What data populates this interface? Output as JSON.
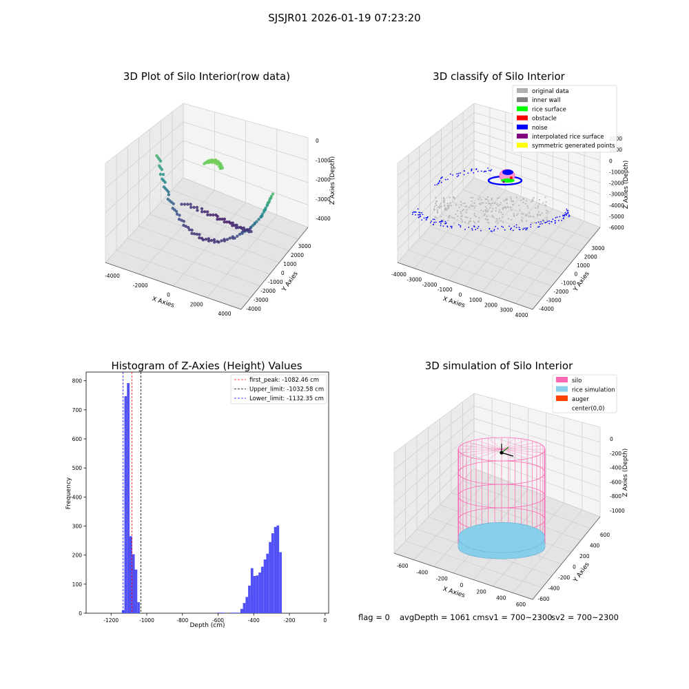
{
  "figure": {
    "suptitle": "SJSJR01 2026-01-19 07:23:20",
    "footer": {
      "flag": "flag = 0",
      "avg": "avgDepth = 1061 cmsv1 = 700~2300",
      "sv2": "sv2 = 700~2300"
    },
    "colors": {
      "histogram_bar": "#5050f5",
      "first_peak": "#ff0000",
      "upper_limit": "#000000",
      "lower_limit": "#0000ff",
      "silo": "#ff69b4",
      "rice_simulation": "#87ceeb",
      "auger": "#ff4500",
      "grid": "#cccccc",
      "pane": "#f2f2f2"
    }
  },
  "chart_data": [
    {
      "id": "raw",
      "type": "scatter",
      "title": "3D Plot of Silo Interior(row data)",
      "xlabel": "X Axies",
      "ylabel": "Y Axies",
      "zlabel": "Z Axies (Depth)",
      "x_ticks": [
        "-4000",
        "-2000",
        "0",
        "2000",
        "4000"
      ],
      "y_ticks": [
        "-4000",
        "-3000",
        "-2000",
        "-1000",
        "0",
        "1000",
        "2000",
        "3000"
      ],
      "z_ticks": [
        "0",
        "-1000",
        "-2000",
        "-3000",
        "-4000"
      ],
      "xlim": [
        -4500,
        4500
      ],
      "ylim": [
        -4500,
        3500
      ],
      "zlim": [
        -4500,
        500
      ],
      "colormap": "viridis",
      "series": [
        {
          "x": [
            -3900,
            -3400,
            -2800,
            -2000,
            -1000,
            0,
            1000,
            2000,
            2800,
            3400,
            3700,
            4000
          ],
          "y": [
            0,
            -300,
            -600,
            -900,
            -1100,
            -1150,
            -1000,
            -800,
            -500,
            -200,
            0,
            200
          ],
          "z": [
            -1200,
            -2000,
            -2700,
            -3300,
            -3700,
            -3900,
            -3800,
            -3400,
            -2900,
            -2300,
            -1700,
            -1100
          ]
        },
        {
          "x": [
            -2500,
            -1500,
            -500,
            500,
            1500,
            2500
          ],
          "y": [
            500,
            900,
            1100,
            1000,
            700,
            300
          ],
          "z": [
            -3600,
            -3900,
            -4100,
            -4100,
            -3900,
            -3600
          ]
        },
        {
          "x": [
            -600,
            -300,
            0,
            300,
            600
          ],
          "y": [
            0,
            100,
            150,
            100,
            0
          ],
          "z": [
            -700,
            -600,
            -550,
            -600,
            -700
          ]
        }
      ]
    },
    {
      "id": "classify",
      "type": "scatter",
      "title": "3D classify of Silo Interior",
      "xlabel": "X Axies",
      "ylabel": "Y Axies",
      "zlabel": "Z Axies (Depth)",
      "x_ticks": [
        "-4000",
        "-3000",
        "-2000",
        "-1000",
        "0",
        "1000",
        "2000",
        "3000",
        "4000"
      ],
      "y_ticks": [
        "-4000",
        "-3000",
        "-2000",
        "-1000",
        "0",
        "1000",
        "2000",
        "3000"
      ],
      "z_ticks": [
        "2000",
        "1000",
        "0",
        "-1000",
        "-2000",
        "-3000",
        "-4000",
        "-5000",
        "-6000"
      ],
      "xlim": [
        -4500,
        4500
      ],
      "ylim": [
        -4500,
        3500
      ],
      "zlim": [
        -6500,
        2500
      ],
      "legend": {
        "position": "upper right",
        "entries": [
          {
            "label": "original data",
            "color": "#b0b0b0"
          },
          {
            "label": "inner wall",
            "color": "#808080"
          },
          {
            "label": "rice surface",
            "color": "#00ff00"
          },
          {
            "label": "obstacle",
            "color": "#ff0000"
          },
          {
            "label": "noise",
            "color": "#0000ff"
          },
          {
            "label": "interpolated rice surface",
            "color": "#800080"
          },
          {
            "label": "symmetric generated points",
            "color": "#ffff00"
          }
        ]
      }
    },
    {
      "id": "hist",
      "type": "bar",
      "title": "Histogram of Z-Axies (Height) Values",
      "xlabel": "Depth (cm)",
      "ylabel": "Frequency",
      "xlim": [
        -1340,
        20
      ],
      "ylim": [
        0,
        830
      ],
      "x_ticks": [
        -1200,
        -1000,
        -800,
        -600,
        -400,
        -200,
        0
      ],
      "y_ticks": [
        0,
        100,
        200,
        300,
        400,
        500,
        600,
        700,
        800
      ],
      "grid": false,
      "bin_width": 14.5,
      "bins": [
        [
          -1140,
          10
        ],
        [
          -1125.5,
          747
        ],
        [
          -1111,
          792
        ],
        [
          -1096.5,
          265
        ],
        [
          -1082,
          203
        ],
        [
          -1067.5,
          150
        ],
        [
          -1053,
          38
        ],
        [
          -606,
          2
        ],
        [
          -591.5,
          2
        ],
        [
          -577,
          2
        ],
        [
          -533,
          2
        ],
        [
          -518.5,
          2
        ],
        [
          -504,
          2
        ],
        [
          -489.5,
          2
        ],
        [
          -475,
          15
        ],
        [
          -460.5,
          35
        ],
        [
          -446,
          56
        ],
        [
          -431.5,
          95
        ],
        [
          -417,
          155
        ],
        [
          -402.5,
          128
        ],
        [
          -388,
          130
        ],
        [
          -373.5,
          140
        ],
        [
          -359,
          160
        ],
        [
          -344.5,
          185
        ],
        [
          -330,
          205
        ],
        [
          -315.5,
          245
        ],
        [
          -301,
          275
        ],
        [
          -286.5,
          297
        ],
        [
          -272,
          302
        ],
        [
          -257.5,
          210
        ]
      ],
      "vlines": [
        {
          "label": "first_peak: -1082.46 cm",
          "x": -1082.46,
          "color": "#ff0000"
        },
        {
          "label": "Upper_limit: -1032.58 cm",
          "x": -1032.58,
          "color": "#000000"
        },
        {
          "label": "Lower_limit: -1132.35 cm",
          "x": -1132.35,
          "color": "#0000ff"
        }
      ],
      "legend": {
        "position": "upper right"
      }
    },
    {
      "id": "sim",
      "type": "area",
      "title": "3D simulation of Silo Interior",
      "xlabel": "X Axies",
      "ylabel": "Y Axies",
      "zlabel": "Z Axies (Depth)",
      "x_ticks": [
        "-600",
        "-400",
        "-200",
        "0",
        "200",
        "400",
        "600"
      ],
      "y_ticks": [
        "-600",
        "-400",
        "-200",
        "0",
        "200",
        "400",
        "600"
      ],
      "z_ticks": [
        "0",
        "-200",
        "-400",
        "-600",
        "-800",
        "-1000"
      ],
      "xlim": [
        -700,
        700
      ],
      "ylim": [
        -700,
        700
      ],
      "zlim": [
        -1150,
        150
      ],
      "silo_radius": 400,
      "silo_top": 0,
      "silo_bottom": -1100,
      "rice_level": -1061,
      "legend": {
        "position": "upper right",
        "entries": [
          {
            "label": "silo",
            "color": "#ff69b4"
          },
          {
            "label": "rice simulation",
            "color": "#87ceeb"
          },
          {
            "label": "auger",
            "color": "#ff4500"
          },
          {
            "label": "center(0,0)",
            "color": ""
          }
        ]
      }
    }
  ]
}
